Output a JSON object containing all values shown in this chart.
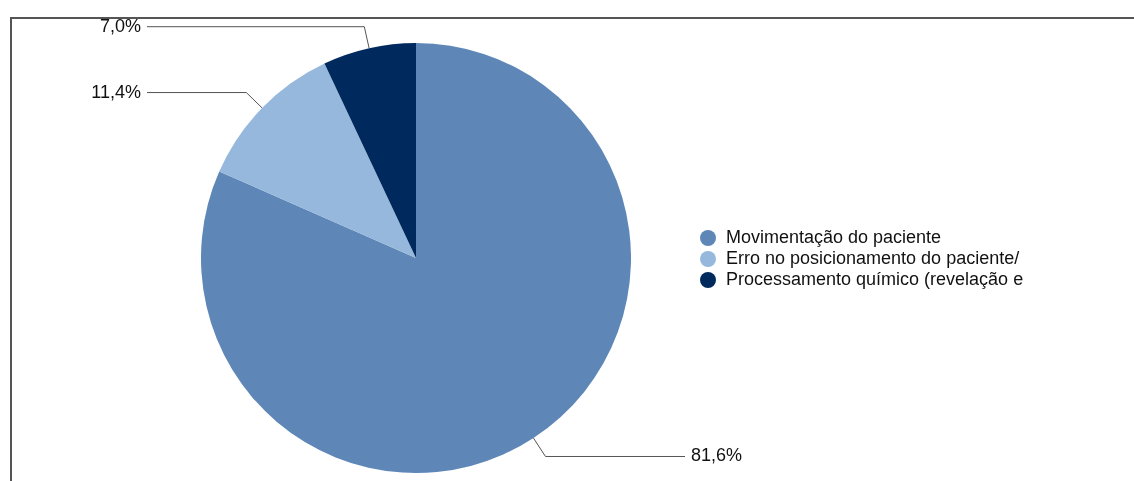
{
  "chart_data": {
    "type": "pie",
    "categories": [
      "Movimentação do paciente",
      "Erro no posicionamento do paciente/",
      "Processamento químico (revelação e"
    ],
    "values": [
      81.6,
      11.4,
      7.0
    ],
    "value_labels": [
      "81,6%",
      "11,4%",
      "7,0%"
    ],
    "colors": [
      "#5e87b8",
      "#95b8dc",
      "#002a5e"
    ],
    "legend": "right"
  }
}
